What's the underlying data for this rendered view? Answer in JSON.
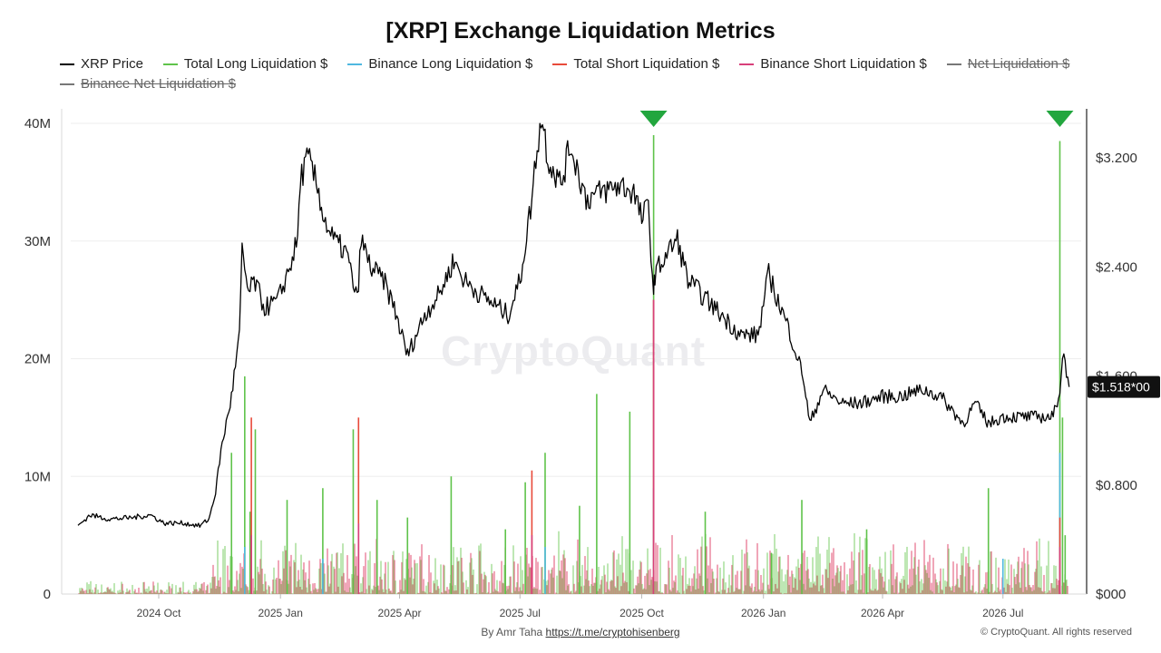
{
  "title": "[XRP] Exchange Liquidation Metrics",
  "legend": [
    {
      "label": "XRP Price",
      "color": "#000000",
      "hidden": false
    },
    {
      "label": "Total Long Liquidation $",
      "color": "#5fc34a",
      "hidden": false
    },
    {
      "label": "Binance Long Liquidation $",
      "color": "#4fb8e0",
      "hidden": false
    },
    {
      "label": "Total Short Liquidation $",
      "color": "#e84a3a",
      "hidden": false
    },
    {
      "label": "Binance Short Liquidation $",
      "color": "#d8407a",
      "hidden": false
    },
    {
      "label": "Net Liquidation $",
      "color": "#777777",
      "hidden": true
    },
    {
      "label": "Binance Net Liquidation $",
      "color": "#777777",
      "hidden": true
    }
  ],
  "watermark": "CryptoQuant",
  "footer": {
    "prefix": "By Amr Taha",
    "link": "https://t.me/cryptohisenberg"
  },
  "copyright": "© CryptoQuant. All rights reserved",
  "chart_data": {
    "type": "line",
    "x_axis": {
      "ticks": [
        "2024 Oct",
        "2025 Jan",
        "2025 Apr",
        "2025 Jul",
        "2025 Oct",
        "2026 Jan",
        "2026 Apr",
        "2026 Jul"
      ]
    },
    "y_left": {
      "ticks": [
        "0",
        "10M",
        "20M",
        "30M",
        "40M"
      ],
      "min": 0,
      "max": 40000000
    },
    "y_right": {
      "ticks": [
        "$000",
        "$0.800",
        "$1.600",
        "$2.400",
        "$3.200"
      ],
      "min": 0,
      "max": 3.6
    },
    "current_price_label": "$1.518*00",
    "series": [
      {
        "name": "XRP Price",
        "axis": "right",
        "color": "#000000",
        "x": [
          "2024-08-01",
          "2024-08-10",
          "2024-08-25",
          "2024-09-10",
          "2024-09-25",
          "2024-10-05",
          "2024-10-20",
          "2024-11-01",
          "2024-11-08",
          "2024-11-13",
          "2024-11-17",
          "2024-11-22",
          "2024-11-25",
          "2024-12-01",
          "2024-12-03",
          "2024-12-08",
          "2024-12-12",
          "2024-12-20",
          "2024-12-30",
          "2025-01-08",
          "2025-01-14",
          "2025-01-16",
          "2025-01-22",
          "2025-01-30",
          "2025-02-03",
          "2025-02-10",
          "2025-02-20",
          "2025-02-28",
          "2025-03-03",
          "2025-03-10",
          "2025-03-20",
          "2025-03-28",
          "2025-04-07",
          "2025-04-20",
          "2025-05-01",
          "2025-05-12",
          "2025-05-20",
          "2025-06-01",
          "2025-06-15",
          "2025-06-22",
          "2025-07-01",
          "2025-07-10",
          "2025-07-14",
          "2025-07-18",
          "2025-07-22",
          "2025-08-01",
          "2025-08-08",
          "2025-08-20",
          "2025-09-01",
          "2025-09-15",
          "2025-09-25",
          "2025-10-01",
          "2025-10-06",
          "2025-10-10",
          "2025-10-11",
          "2025-10-20",
          "2025-10-28",
          "2025-11-05",
          "2025-11-15",
          "2025-11-25",
          "2025-12-05",
          "2025-12-15",
          "2025-12-28",
          "2026-01-05",
          "2026-01-12",
          "2026-01-20",
          "2026-01-31",
          "2026-02-05",
          "2026-02-15",
          "2026-03-01",
          "2026-03-15",
          "2026-04-01",
          "2026-04-15",
          "2026-05-01",
          "2026-05-15",
          "2026-06-01",
          "2026-06-10",
          "2026-06-20",
          "2026-07-01",
          "2026-07-10",
          "2026-07-20",
          "2026-08-01",
          "2026-08-08",
          "2026-08-13",
          "2026-08-15",
          "2026-08-17",
          "2026-08-20"
        ],
        "values": [
          0.5,
          0.58,
          0.55,
          0.56,
          0.58,
          0.52,
          0.52,
          0.5,
          0.55,
          0.75,
          1.05,
          1.3,
          1.45,
          1.9,
          2.5,
          2.2,
          2.3,
          2.1,
          2.15,
          2.4,
          2.6,
          3.05,
          3.2,
          2.95,
          2.75,
          2.6,
          2.5,
          2.15,
          2.6,
          2.4,
          2.3,
          2.1,
          1.75,
          2.05,
          2.2,
          2.45,
          2.3,
          2.2,
          2.1,
          2.05,
          2.3,
          2.9,
          3.3,
          3.5,
          3.2,
          3.0,
          3.3,
          2.9,
          2.95,
          3.0,
          2.95,
          2.75,
          2.85,
          2.2,
          2.35,
          2.5,
          2.6,
          2.3,
          2.2,
          2.1,
          2.0,
          1.9,
          1.9,
          2.35,
          2.15,
          1.95,
          1.6,
          1.25,
          1.5,
          1.4,
          1.4,
          1.45,
          1.45,
          1.5,
          1.45,
          1.25,
          1.4,
          1.25,
          1.3,
          1.3,
          1.3,
          1.3,
          1.3,
          1.5,
          1.75,
          1.7,
          1.52
        ]
      },
      {
        "name": "Total Long Liquidation $",
        "axis": "left",
        "color": "#5fc34a",
        "x": [
          "2024-11-25",
          "2024-12-05",
          "2024-12-09",
          "2024-12-13",
          "2025-01-06",
          "2025-02-02",
          "2025-02-25",
          "2025-03-15",
          "2025-04-07",
          "2025-05-10",
          "2025-06-20",
          "2025-07-05",
          "2025-07-20",
          "2025-08-15",
          "2025-08-28",
          "2025-09-22",
          "2025-10-10",
          "2025-11-18",
          "2026-01-07",
          "2026-01-30",
          "2026-03-20",
          "2026-06-20",
          "2026-08-13",
          "2026-08-15",
          "2026-08-17"
        ],
        "values": [
          12000000,
          18500000,
          7000000,
          14000000,
          8000000,
          9000000,
          14000000,
          8000000,
          6500000,
          10000000,
          5500000,
          9500000,
          12000000,
          7500000,
          17000000,
          15500000,
          39000000,
          7000000,
          3500000,
          8000000,
          5500000,
          9000000,
          38500000,
          15000000,
          5000000
        ]
      },
      {
        "name": "Binance Long Liquidation $",
        "axis": "left",
        "color": "#4fb8e0",
        "x": [
          "2024-12-05",
          "2025-02-02",
          "2025-07-20",
          "2025-10-10",
          "2026-07-01",
          "2026-08-13"
        ],
        "values": [
          4000000,
          3000000,
          4000000,
          9000000,
          3000000,
          12000000
        ]
      },
      {
        "name": "Total Short Liquidation $",
        "axis": "left",
        "color": "#e84a3a",
        "x": [
          "2024-12-10",
          "2025-03-01",
          "2025-07-10",
          "2025-10-10",
          "2026-08-13"
        ],
        "values": [
          15000000,
          15000000,
          10500000,
          25000000,
          6500000
        ]
      },
      {
        "name": "Binance Short Liquidation $",
        "axis": "left",
        "color": "#d8407a",
        "x": [
          "2024-12-10",
          "2025-03-01",
          "2025-07-10",
          "2025-10-10",
          "2026-08-13"
        ],
        "values": [
          5000000,
          6000000,
          5000000,
          25000000,
          4000000
        ]
      }
    ],
    "annotations": [
      {
        "type": "triangle-marker",
        "x": "2025-10-10",
        "color": "#22a63e"
      },
      {
        "type": "triangle-marker",
        "x": "2026-08-13",
        "color": "#22a63e"
      }
    ]
  }
}
